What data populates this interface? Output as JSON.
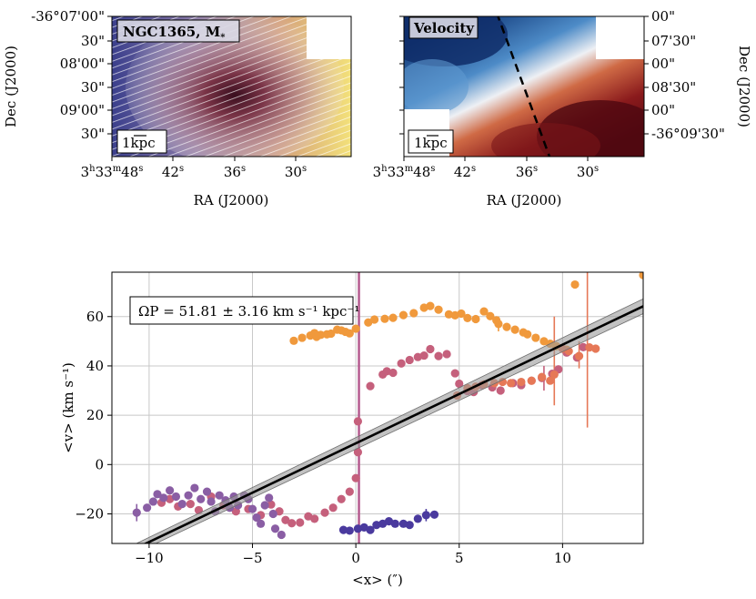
{
  "maps": [
    {
      "label": "NGC1365, M",
      "label_sub": "*",
      "scalebar": "1kpc",
      "ytick_labels": [
        "-36°07'00\"",
        "30\"",
        "08'00\"",
        "30\"",
        "09'00\"",
        "30\""
      ],
      "ylabel": "Dec (J2000)",
      "xlabel": "RA (J2000)"
    },
    {
      "label": "Velocity",
      "scalebar": "1kpc",
      "ytick_labels": [
        "00\"",
        "07'30\"",
        "00\"",
        "08'30\"",
        "00\"",
        "-36°09'30\""
      ],
      "ylabel": "Dec (J2000)",
      "xlabel": "RA (J2000)"
    }
  ],
  "ra_ticks": [
    {
      "h": "3",
      "m": "33",
      "s": "48"
    },
    {
      "s": "42"
    },
    {
      "s": "36"
    },
    {
      "s": "30"
    }
  ],
  "chart_data": {
    "type": "scatter",
    "xlabel": "<x> (″)",
    "ylabel": "<v> (km s⁻¹)",
    "xlim": [
      -11.8,
      13.9
    ],
    "ylim": [
      -32,
      78
    ],
    "xticks": [
      -10,
      -5,
      0,
      5,
      10
    ],
    "yticks": [
      -20,
      0,
      20,
      40,
      60
    ],
    "grid": true,
    "annotation": "ΩP = 51.81 ± 3.16 km s⁻¹ kpc⁻¹",
    "fit_line": {
      "slope": 4.0,
      "intercept": 8.6,
      "band": 1.8
    },
    "vertical_line": {
      "x": 0.15,
      "color": "#b55b8f"
    },
    "series": [
      {
        "color": "#f0993c",
        "points": [
          [
            -3.0,
            50.2
          ],
          [
            -2.6,
            51.4
          ],
          [
            -2.2,
            52.3
          ],
          [
            -2.0,
            53.3
          ],
          [
            -1.9,
            51.8
          ],
          [
            -1.7,
            52.6
          ],
          [
            -1.4,
            52.8
          ],
          [
            -1.2,
            53.1
          ],
          [
            -0.9,
            54.7
          ],
          [
            -0.7,
            54.4
          ],
          [
            -0.5,
            53.8
          ],
          [
            -0.3,
            53.2
          ],
          [
            0.0,
            55.1
          ],
          [
            0.6,
            57.6
          ],
          [
            0.9,
            58.8
          ],
          [
            1.4,
            59.1
          ],
          [
            1.8,
            59.5
          ],
          [
            2.3,
            60.6
          ],
          [
            2.8,
            61.4
          ],
          [
            3.3,
            63.6
          ],
          [
            3.6,
            64.3
          ],
          [
            4.0,
            62.8
          ],
          [
            4.5,
            60.9
          ],
          [
            4.8,
            60.5
          ],
          [
            5.1,
            61.2
          ],
          [
            5.4,
            59.4
          ],
          [
            5.8,
            59.0
          ],
          [
            6.2,
            62.1
          ],
          [
            6.5,
            60.2
          ],
          [
            6.8,
            58.5
          ],
          [
            6.9,
            57.0
          ],
          [
            7.3,
            55.8
          ],
          [
            7.7,
            54.7
          ],
          [
            8.1,
            53.6
          ],
          [
            8.3,
            52.8
          ],
          [
            8.7,
            51.4
          ],
          [
            9.1,
            50.0
          ],
          [
            9.4,
            49.0
          ],
          [
            9.7,
            48.0
          ],
          [
            10.2,
            46.6
          ],
          [
            10.6,
            73.0
          ],
          [
            13.9,
            76.8
          ]
        ]
      },
      {
        "color": "#c5607c",
        "points": [
          [
            -9.4,
            -15.5
          ],
          [
            -9.0,
            -14.0
          ],
          [
            -8.6,
            -17.0
          ],
          [
            -8.0,
            -16.0
          ],
          [
            -7.6,
            -18.5
          ],
          [
            -7.0,
            -13.0
          ],
          [
            -6.4,
            -16.5
          ],
          [
            -5.8,
            -19.0
          ],
          [
            -5.2,
            -18.0
          ],
          [
            -4.6,
            -20.5
          ],
          [
            -4.1,
            -16.2
          ],
          [
            -3.7,
            -19.0
          ],
          [
            -3.4,
            -22.5
          ],
          [
            -3.1,
            -23.8
          ],
          [
            -2.7,
            -23.5
          ],
          [
            -2.3,
            -21.0
          ],
          [
            -2.0,
            -22.0
          ],
          [
            -1.5,
            -19.5
          ],
          [
            -1.1,
            -17.5
          ],
          [
            -0.7,
            -14.0
          ],
          [
            -0.3,
            -11.0
          ],
          [
            0.0,
            -5.5
          ],
          [
            0.1,
            5.0
          ],
          [
            0.1,
            17.5
          ],
          [
            0.7,
            31.8
          ],
          [
            1.3,
            36.5
          ],
          [
            1.5,
            37.8
          ],
          [
            1.8,
            37.2
          ],
          [
            2.2,
            41.0
          ],
          [
            2.6,
            42.4
          ],
          [
            3.0,
            43.6
          ],
          [
            3.3,
            44.2
          ],
          [
            3.6,
            46.8
          ],
          [
            4.0,
            44.0
          ],
          [
            4.4,
            44.8
          ],
          [
            4.8,
            37.0
          ],
          [
            5.0,
            32.8
          ],
          [
            5.4,
            29.8
          ],
          [
            5.7,
            29.4
          ],
          [
            6.1,
            32.2
          ],
          [
            6.6,
            31.3
          ],
          [
            7.0,
            30.0
          ],
          [
            7.6,
            33.0
          ],
          [
            8.0,
            32.2
          ],
          [
            8.5,
            34.0
          ],
          [
            9.0,
            35.1
          ],
          [
            9.5,
            36.8
          ],
          [
            9.8,
            38.6
          ],
          [
            10.2,
            45.4
          ],
          [
            10.7,
            43.4
          ],
          [
            11.0,
            47.6
          ]
        ]
      },
      {
        "color": "#e67857",
        "points": [
          [
            4.9,
            28.0
          ],
          [
            5.4,
            31.0
          ],
          [
            5.8,
            31.6
          ],
          [
            6.2,
            32.5
          ],
          [
            6.7,
            33.0
          ],
          [
            7.1,
            33.5
          ],
          [
            7.5,
            33.0
          ],
          [
            8.0,
            33.5
          ],
          [
            8.5,
            34.0
          ],
          [
            9.0,
            35.5
          ],
          [
            9.4,
            34.0
          ],
          [
            9.6,
            36.5
          ],
          [
            10.0,
            47.0
          ],
          [
            10.3,
            46.0
          ],
          [
            10.8,
            44.0
          ],
          [
            11.3,
            47.5
          ],
          [
            11.6,
            47.0
          ]
        ]
      },
      {
        "color": "#8a5ea4",
        "points": [
          [
            -10.6,
            -19.5
          ],
          [
            -10.1,
            -17.5
          ],
          [
            -9.8,
            -15.0
          ],
          [
            -9.6,
            -12.0
          ],
          [
            -9.3,
            -13.5
          ],
          [
            -9.0,
            -10.5
          ],
          [
            -8.7,
            -13.0
          ],
          [
            -8.4,
            -16.0
          ],
          [
            -8.1,
            -12.5
          ],
          [
            -7.8,
            -9.5
          ],
          [
            -7.5,
            -14.0
          ],
          [
            -7.2,
            -11.0
          ],
          [
            -7.0,
            -15.0
          ],
          [
            -6.8,
            -19.0
          ],
          [
            -6.6,
            -12.5
          ],
          [
            -6.3,
            -14.5
          ],
          [
            -6.1,
            -17.5
          ],
          [
            -5.9,
            -13.0
          ],
          [
            -5.7,
            -16.5
          ],
          [
            -5.4,
            -12.5
          ],
          [
            -5.2,
            -14.0
          ],
          [
            -5.0,
            -18.0
          ],
          [
            -4.8,
            -21.5
          ],
          [
            -4.6,
            -24.0
          ],
          [
            -4.4,
            -16.5
          ],
          [
            -4.2,
            -13.5
          ],
          [
            -4.0,
            -20.0
          ],
          [
            -3.9,
            -26.0
          ],
          [
            -3.6,
            -28.5
          ]
        ]
      },
      {
        "color": "#4a3a9e",
        "points": [
          [
            -0.6,
            -26.5
          ],
          [
            -0.3,
            -26.8
          ],
          [
            0.1,
            -26.0
          ],
          [
            0.4,
            -25.5
          ],
          [
            0.7,
            -26.5
          ],
          [
            1.0,
            -24.5
          ],
          [
            1.3,
            -24.0
          ],
          [
            1.6,
            -23.0
          ],
          [
            1.9,
            -24.0
          ],
          [
            2.3,
            -24.0
          ],
          [
            2.6,
            -24.5
          ],
          [
            3.0,
            -22.0
          ],
          [
            3.4,
            -20.5
          ],
          [
            3.8,
            -20.3
          ]
        ]
      }
    ],
    "error_bars": [
      {
        "x": 9.6,
        "y": 36.5,
        "low": 24,
        "high": 60,
        "color": "#e67857"
      },
      {
        "x": 11.2,
        "y": 47.5,
        "low": 15,
        "high": 78,
        "color": "#e67857"
      },
      {
        "x": 10.8,
        "y": 44.0,
        "low": 39,
        "high": 50,
        "color": "#e67857"
      },
      {
        "x": 9.1,
        "y": 35.0,
        "low": 30,
        "high": 40,
        "color": "#c5607c"
      },
      {
        "x": 6.9,
        "y": 57.0,
        "low": 54,
        "high": 60,
        "color": "#f0993c"
      },
      {
        "x": -10.6,
        "y": -19.5,
        "low": -23,
        "high": -16,
        "color": "#8a5ea4"
      },
      {
        "x": 3.4,
        "y": -20.5,
        "low": -23,
        "high": -18,
        "color": "#4a3a9e"
      }
    ]
  }
}
